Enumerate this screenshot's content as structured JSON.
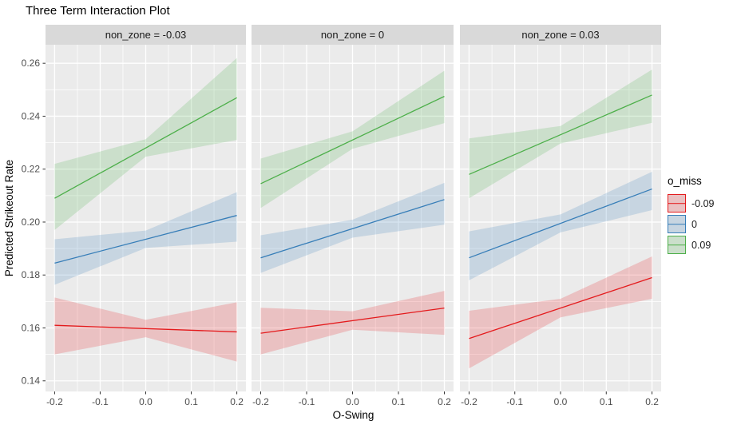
{
  "chart_data": {
    "type": "line",
    "title": "Three Term Interaction Plot",
    "xlabel": "O-Swing",
    "ylabel": "Predicted Strikeout Rate",
    "xlim": [
      -0.22,
      0.22
    ],
    "ylim": [
      0.136,
      0.267
    ],
    "x_major_ticks": [
      -0.2,
      -0.1,
      0,
      0.1,
      0.2
    ],
    "x_tick_labels": [
      "-0.2",
      "-0.1",
      "0.0",
      "0.1",
      "0.2"
    ],
    "x_minor_ticks": [
      -0.15,
      -0.05,
      0.05,
      0.15
    ],
    "y_major_ticks": [
      0.14,
      0.16,
      0.18,
      0.2,
      0.22,
      0.24,
      0.26
    ],
    "y_tick_labels": [
      "0.14",
      "0.16",
      "0.18",
      "0.20",
      "0.22",
      "0.24",
      "0.26"
    ],
    "y_minor_ticks": [
      0.15,
      0.17,
      0.19,
      0.21,
      0.23,
      0.25
    ],
    "grid": "white major+minor gridlines on gray panels",
    "colors": {
      "panel_bg": "#EBEBEB",
      "strip_bg": "#D9D9D9",
      "grid": "#FFFFFF",
      "tick_text": "#4D4D4D",
      "ribbon_alpha": 0.2
    },
    "legend": {
      "title": "o_miss",
      "position": "right",
      "entries": [
        {
          "label": "-0.09",
          "color": "#E41A1C"
        },
        {
          "label": "0",
          "color": "#377EB8"
        },
        {
          "label": "0.09",
          "color": "#4DAF4A"
        }
      ]
    },
    "series_x": [
      -0.2,
      0.2
    ],
    "ribbon_x": [
      -0.2,
      0,
      0.2
    ],
    "facets": [
      {
        "label": "non_zone = -0.03",
        "series": [
          {
            "o_miss": "-0.09",
            "color": "#E41A1C",
            "line_y": [
              0.161,
              0.1585
            ],
            "ribbon_upper": [
              0.1715,
              0.1631,
              0.1697
            ],
            "ribbon_lower": [
              0.15,
              0.1565,
              0.1473
            ]
          },
          {
            "o_miss": "0",
            "color": "#377EB8",
            "line_y": [
              0.1845,
              0.2025
            ],
            "ribbon_upper": [
              0.1935,
              0.1968,
              0.2113
            ],
            "ribbon_lower": [
              0.1763,
              0.1902,
              0.1926
            ]
          },
          {
            "o_miss": "0.09",
            "color": "#4DAF4A",
            "line_y": [
              0.209,
              0.247
            ],
            "ribbon_upper": [
              0.222,
              0.2313,
              0.262
            ],
            "ribbon_lower": [
              0.197,
              0.2247,
              0.231
            ]
          }
        ]
      },
      {
        "label": "non_zone = 0",
        "series": [
          {
            "o_miss": "-0.09",
            "color": "#E41A1C",
            "line_y": [
              0.158,
              0.1675
            ],
            "ribbon_upper": [
              0.1676,
              0.1663,
              0.174
            ],
            "ribbon_lower": [
              0.15,
              0.1593,
              0.1574
            ]
          },
          {
            "o_miss": "0",
            "color": "#377EB8",
            "line_y": [
              0.1865,
              0.2085
            ],
            "ribbon_upper": [
              0.195,
              0.2009,
              0.2148
            ],
            "ribbon_lower": [
              0.1808,
              0.1941,
              0.199
            ]
          },
          {
            "o_miss": "0.09",
            "color": "#4DAF4A",
            "line_y": [
              0.2145,
              0.2475
            ],
            "ribbon_upper": [
              0.224,
              0.2343,
              0.2572
            ],
            "ribbon_lower": [
              0.2053,
              0.2277,
              0.2374
            ]
          }
        ]
      },
      {
        "label": "non_zone = 0.03",
        "series": [
          {
            "o_miss": "-0.09",
            "color": "#E41A1C",
            "line_y": [
              0.156,
              0.179
            ],
            "ribbon_upper": [
              0.1665,
              0.171,
              0.187
            ],
            "ribbon_lower": [
              0.1447,
              0.164,
              0.171
            ]
          },
          {
            "o_miss": "0",
            "color": "#377EB8",
            "line_y": [
              0.1865,
              0.2125
            ],
            "ribbon_upper": [
              0.1965,
              0.2029,
              0.219
            ],
            "ribbon_lower": [
              0.178,
              0.1961,
              0.2045
            ]
          },
          {
            "o_miss": "0.09",
            "color": "#4DAF4A",
            "line_y": [
              0.218,
              0.248
            ],
            "ribbon_upper": [
              0.2316,
              0.2363,
              0.2576
            ],
            "ribbon_lower": [
              0.209,
              0.2297,
              0.2375
            ]
          }
        ]
      }
    ]
  }
}
